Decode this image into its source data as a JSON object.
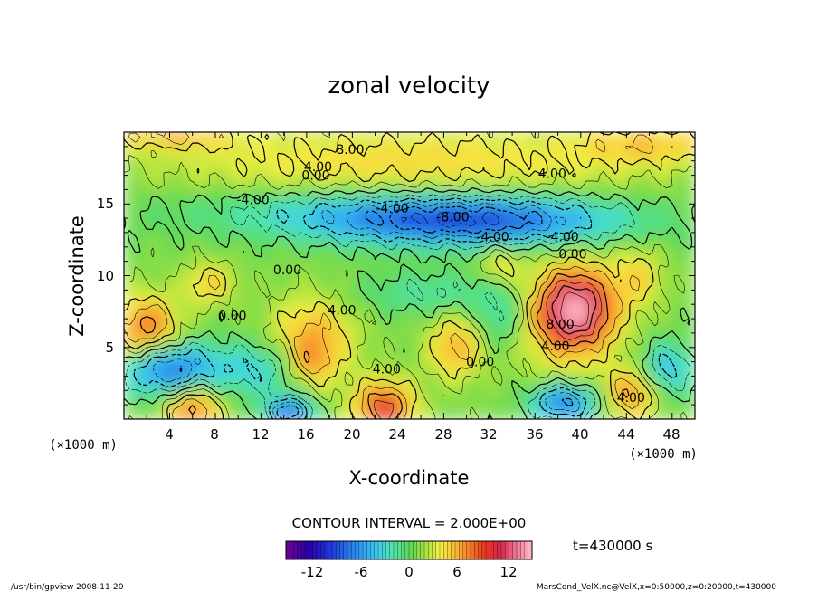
{
  "chart_data": {
    "type": "heatmap",
    "title": "zonal velocity",
    "xlabel": "X-coordinate",
    "ylabel": "Z-coordinate",
    "x_unit": "(×1000 m)",
    "y_unit": "(×1000 m)",
    "xlim": [
      0,
      50
    ],
    "ylim": [
      0,
      20
    ],
    "x_ticks": [
      "4",
      "8",
      "12",
      "16",
      "20",
      "24",
      "28",
      "32",
      "36",
      "40",
      "44",
      "48"
    ],
    "y_ticks": [
      "5",
      "10",
      "15"
    ],
    "contour_interval_text": "CONTOUR INTERVAL = 2.000E+00",
    "colorbar": {
      "range": [
        -16,
        16
      ],
      "tick_labels": [
        "-12",
        "-6",
        "0",
        "6",
        "12"
      ]
    },
    "contour_labels": [
      {
        "x": 19.8,
        "z": 18.5,
        "text": "8.00"
      },
      {
        "x": 17.0,
        "z": 17.3,
        "text": "4.00"
      },
      {
        "x": 16.8,
        "z": 16.7,
        "text": "0.00"
      },
      {
        "x": 37.5,
        "z": 16.8,
        "text": "4.00"
      },
      {
        "x": 11.3,
        "z": 15.0,
        "text": "-4.00"
      },
      {
        "x": 23.5,
        "z": 14.4,
        "text": "-4.00"
      },
      {
        "x": 28.8,
        "z": 13.8,
        "text": "-8.00"
      },
      {
        "x": 32.3,
        "z": 12.4,
        "text": "-4.00"
      },
      {
        "x": 38.4,
        "z": 12.4,
        "text": "-4.00"
      },
      {
        "x": 39.3,
        "z": 11.2,
        "text": "0.00"
      },
      {
        "x": 14.3,
        "z": 10.1,
        "text": "0.00"
      },
      {
        "x": 9.5,
        "z": 6.9,
        "text": "0.00"
      },
      {
        "x": 19.1,
        "z": 7.3,
        "text": "4.00"
      },
      {
        "x": 38.2,
        "z": 6.3,
        "text": "8.00"
      },
      {
        "x": 37.8,
        "z": 4.8,
        "text": "4.00"
      },
      {
        "x": 31.2,
        "z": 3.7,
        "text": "0.00"
      },
      {
        "x": 23.0,
        "z": 3.2,
        "text": "4.00"
      },
      {
        "x": 44.4,
        "z": 1.2,
        "text": "4.00"
      }
    ]
  },
  "time_label": "t=430000 s",
  "footer_left": "/usr/bin/gpview   2008-11-20",
  "footer_right": "MarsCond_VelX.nc@VelX,x=0:50000,z=0:20000,t=430000"
}
